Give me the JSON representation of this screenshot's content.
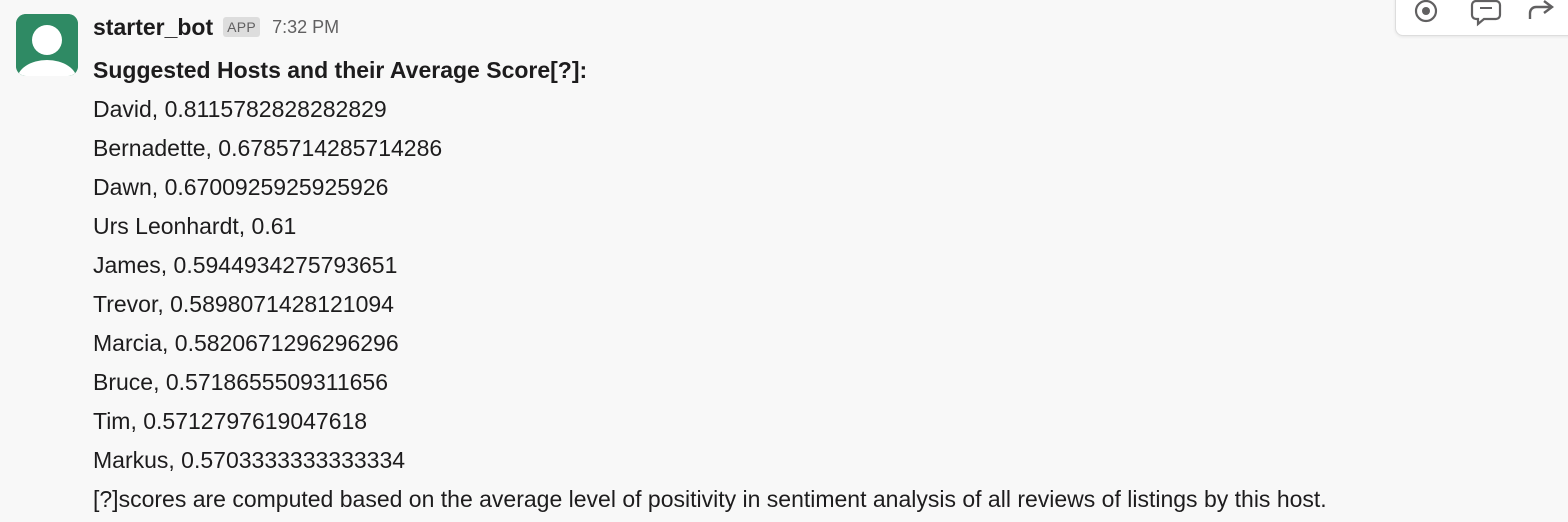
{
  "message": {
    "sender": "starter_bot",
    "badge": "APP",
    "time": "7:32 PM",
    "heading": "Suggested Hosts and their Average Score[?]:",
    "hosts": [
      "David, 0.8115782828282829",
      "Bernadette, 0.6785714285714286",
      "Dawn, 0.6700925925925926",
      "Urs Leonhardt, 0.61",
      "James, 0.5944934275793651",
      "Trevor, 0.5898071428121094",
      "Marcia, 0.5820671296296296",
      "Bruce, 0.5718655509311656",
      "Tim, 0.5712797619047618",
      "Markus, 0.5703333333333334"
    ],
    "footnote": "[?]scores are computed based on the average level of positivity in sentiment analysis of all reviews of listings by this host."
  },
  "actions": {
    "icons": [
      "add-reaction-icon",
      "reply-in-thread-icon",
      "share-message-icon"
    ]
  },
  "colors": {
    "avatar": "#2f8a64",
    "background": "#f8f8f8",
    "text": "#1d1c1d",
    "muted": "#616061"
  }
}
